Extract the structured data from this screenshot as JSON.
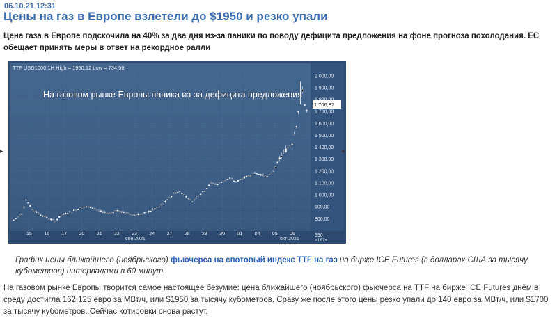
{
  "article": {
    "date": "06.10.21 12:31",
    "title": "Цены на газ в Европе взлетели до $1950 и резко упали",
    "lead": "Цена газа в Европе подскочила на 40% за два дня из-за паники по поводу дефицита предложения на фоне прогноза похолодания. ЕС обещает принять меры в ответ на рекордное ралли",
    "caption_pre": "График цены ближайшего (ноябрьского) ",
    "caption_link": "фьючерса на спотовый индекс TTF на газ",
    "caption_post": " на бирже ICE Futures (в долларах США за тысячу кубометров) интервалами в 60 минут",
    "body": "На газовом рынке Европы творится самое настоящее безумие: цена ближайшего (ноябрьского) фьючерса на TTF на бирже ICE Futures днём в среду достигла 162,125 евро за МВт/ч, или $1950 за тысячу кубометров. Сразу же после этого цены резко упали до 140 евро за МВт/ч, или $1700 за тысячу кубометров. Сейчас котировки снова растут."
  },
  "icons": {
    "left_arrow": "triangle-right-icon",
    "right_arrow": "triangle-left-icon"
  },
  "colors": {
    "chart_bg_top": "#3d5f8c",
    "chart_bg_bottom": "#3a5a86",
    "up_candle": "#ffffff",
    "down_candle": "#111111",
    "last_price_bg": "#ffffff",
    "headline": "#3b6cb0",
    "link": "#2b5fad"
  },
  "chart_data": {
    "type": "candlestick",
    "header": "TTF USD1000 1H High = 1950,12 Low = 734,58",
    "annotation": "На газовом рынке Европы паника из-за дефицита предложения",
    "last_price": "1 706,87",
    "ylim": [
      720,
      2040
    ],
    "y_ticks": [
      "2 000,00",
      "1 900,00",
      "1 800,00",
      "1 700,00",
      "1 600,00",
      "1 500,00",
      "1 400,00",
      "1 300,00",
      "1 200,00",
      "1 100,00",
      "1 000,00",
      "900,00",
      "800,00"
    ],
    "x_ticks": [
      "15",
      "16",
      "17",
      "20",
      "21",
      "22",
      "23",
      "24",
      "27",
      "28",
      "29",
      "30",
      "01",
      "04",
      "05",
      "06"
    ],
    "month_labels": [
      "сен 2021",
      "окт 2021"
    ],
    "footer_right": [
      "990",
      ">167<"
    ],
    "trend": [
      [
        0,
        790
      ],
      [
        4,
        840
      ],
      [
        6,
        960
      ],
      [
        9,
        880
      ],
      [
        11,
        855
      ],
      [
        14,
        825
      ],
      [
        17,
        800
      ],
      [
        20,
        780
      ],
      [
        23,
        830
      ],
      [
        26,
        850
      ],
      [
        30,
        875
      ],
      [
        34,
        900
      ],
      [
        38,
        895
      ],
      [
        42,
        860
      ],
      [
        46,
        845
      ],
      [
        50,
        870
      ],
      [
        54,
        848
      ],
      [
        58,
        832
      ],
      [
        62,
        840
      ],
      [
        66,
        868
      ],
      [
        70,
        900
      ],
      [
        74,
        955
      ],
      [
        77,
        1012
      ],
      [
        80,
        1030
      ],
      [
        83,
        985
      ],
      [
        86,
        945
      ],
      [
        89,
        998
      ],
      [
        92,
        1038
      ],
      [
        95,
        1100
      ],
      [
        98,
        1088
      ],
      [
        101,
        1118
      ],
      [
        104,
        1140
      ],
      [
        107,
        1108
      ],
      [
        110,
        1140
      ],
      [
        113,
        1158
      ],
      [
        116,
        1182
      ],
      [
        119,
        1170
      ],
      [
        122,
        1152
      ],
      [
        124,
        1180
      ],
      [
        126,
        1230
      ],
      [
        128,
        1305
      ],
      [
        130,
        1350
      ],
      [
        132,
        1402
      ],
      [
        134,
        1440
      ],
      [
        135,
        1520
      ],
      [
        136,
        1590
      ],
      [
        137,
        1700
      ],
      [
        138,
        1840
      ],
      [
        139,
        1880
      ],
      [
        140,
        1760
      ],
      [
        141,
        1706
      ]
    ]
  }
}
